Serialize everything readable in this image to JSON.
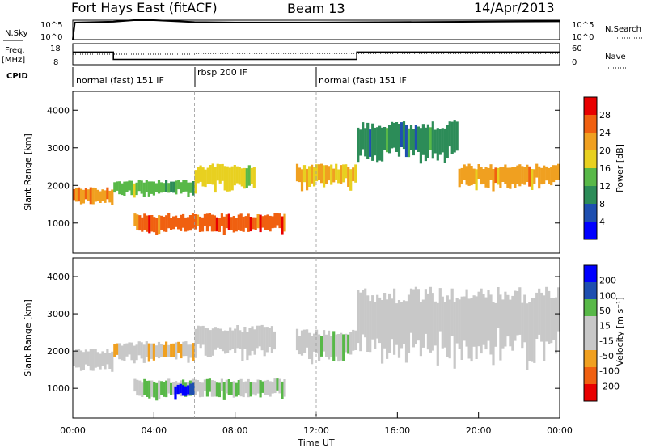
{
  "header": {
    "radar": "Fort Hays East (fitACF)",
    "beam": "Beam 13",
    "date": "14/Apr/2013"
  },
  "top_panels": {
    "nsky_label": "N.Sky",
    "nsky_ticks": [
      "10^5",
      "10^0"
    ],
    "nsearch_label": "N.Search",
    "nsearch_ticks": [
      "10^5",
      "10^0"
    ],
    "freq_label": "Freq.",
    "freq_unit": "[MHz]",
    "freq_ticks": [
      "18",
      "8"
    ],
    "nave_label": "Nave",
    "nave_ticks": [
      "60",
      "0"
    ],
    "cpid_label": "CPID",
    "cpid_segments": [
      {
        "label": "normal (fast) 151 IF",
        "start": 0,
        "end": 6
      },
      {
        "label": "rbsp 200 IF",
        "start": 6,
        "end": 12
      },
      {
        "label": "normal (fast) 151 IF",
        "start": 12,
        "end": 24
      }
    ]
  },
  "axes": {
    "x_ticks": [
      "00:00",
      "04:00",
      "08:00",
      "12:00",
      "16:00",
      "20:00",
      "00:00"
    ],
    "x_label": "Time UT",
    "y_label": "Slant Range [km]",
    "y_ticks": [
      "1000",
      "2000",
      "3000",
      "4000"
    ]
  },
  "colorbars": {
    "power": {
      "label": "Power [dB]",
      "ticks": [
        "28",
        "24",
        "20",
        "16",
        "12",
        "8",
        "4"
      ]
    },
    "velocity": {
      "label": "Velocity [m s⁻¹]",
      "ticks": [
        "200",
        "100",
        "50",
        "15",
        "-15",
        "-50",
        "-100",
        "-200"
      ]
    }
  },
  "chart_data": [
    {
      "type": "line",
      "x_range_hours": [
        0,
        24
      ],
      "series": [
        {
          "name": "N.Sky",
          "x": [
            0,
            0.1,
            2,
            3,
            4,
            6,
            8,
            12,
            16,
            20,
            24
          ],
          "y_log10": [
            0,
            4.4,
            4.6,
            5.0,
            5.0,
            4.5,
            4.4,
            4.4,
            4.5,
            4.6,
            4.7
          ]
        }
      ]
    },
    {
      "type": "line",
      "x_range_hours": [
        0,
        24
      ],
      "y_range_mhz": [
        8,
        18
      ],
      "series": [
        {
          "name": "Freq.",
          "x": [
            0,
            2,
            2,
            14,
            14,
            24
          ],
          "y": [
            14,
            14,
            10.5,
            10.5,
            14,
            14
          ]
        },
        {
          "name": "Nave",
          "x": [
            0,
            6,
            6,
            14,
            14,
            24
          ],
          "y": [
            30,
            30,
            32,
            32,
            32,
            32
          ]
        }
      ]
    },
    {
      "type": "heatmap",
      "quantity": "Power [dB]",
      "x_range_hours": [
        0,
        24
      ],
      "y_range_km": [
        200,
        4500
      ],
      "regions": [
        {
          "t": [
            0,
            2
          ],
          "r": [
            1450,
            1900
          ],
          "value": 24
        },
        {
          "t": [
            2,
            6
          ],
          "r": [
            1700,
            2100
          ],
          "value": 14
        },
        {
          "t": [
            3,
            10.5
          ],
          "r": [
            700,
            1200
          ],
          "value": 26
        },
        {
          "t": [
            6,
            9
          ],
          "r": [
            1800,
            2500
          ],
          "value": 18
        },
        {
          "t": [
            11,
            14
          ],
          "r": [
            1900,
            2500
          ],
          "value": 20
        },
        {
          "t": [
            14,
            19
          ],
          "r": [
            2600,
            3600
          ],
          "value": 10
        },
        {
          "t": [
            19,
            24
          ],
          "r": [
            1900,
            2500
          ],
          "value": 22
        }
      ]
    },
    {
      "type": "heatmap",
      "quantity": "Velocity [m s⁻¹]",
      "x_range_hours": [
        0,
        24
      ],
      "y_range_km": [
        200,
        4500
      ],
      "regions": [
        {
          "t": [
            0,
            2
          ],
          "r": [
            1400,
            2000
          ],
          "value": 0
        },
        {
          "t": [
            2,
            6
          ],
          "r": [
            1700,
            2200
          ],
          "value": -40
        },
        {
          "t": [
            3,
            10.5
          ],
          "r": [
            700,
            1200
          ],
          "value": 60
        },
        {
          "t": [
            5,
            6
          ],
          "r": [
            700,
            1100
          ],
          "value": 200
        },
        {
          "t": [
            6,
            10
          ],
          "r": [
            1800,
            2600
          ],
          "value": 0
        },
        {
          "t": [
            11,
            14
          ],
          "r": [
            1700,
            2500
          ],
          "value": 40
        },
        {
          "t": [
            14,
            24
          ],
          "r": [
            1700,
            3500
          ],
          "value": 0
        }
      ]
    }
  ],
  "colors": {
    "power_scale": [
      "#0000ff",
      "#1e4fb0",
      "#2c8c58",
      "#58b848",
      "#e8d020",
      "#f0a020",
      "#f06010",
      "#e80000"
    ],
    "velocity_scale": [
      "#e80000",
      "#f06010",
      "#f0a020",
      "#c8c8c8",
      "#c8c8c8",
      "#58b848",
      "#1e4fb0",
      "#0000ff"
    ]
  }
}
